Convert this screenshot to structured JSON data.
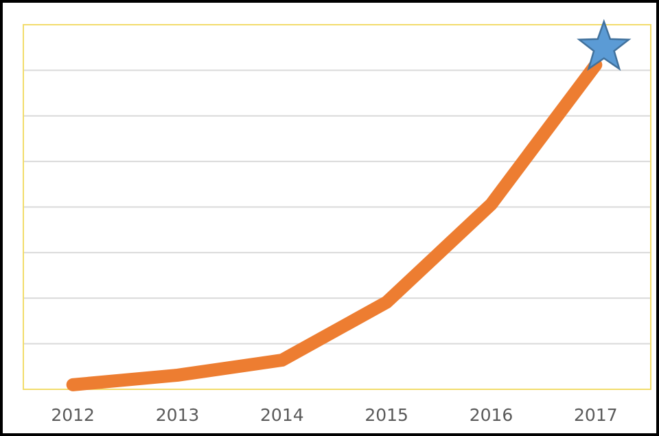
{
  "chart_data": {
    "type": "line",
    "title": "",
    "xlabel": "",
    "ylabel": "",
    "categories": [
      "2012",
      "2013",
      "2014",
      "2015",
      "2016",
      "2017"
    ],
    "series": [
      {
        "values": [
          1.0,
          3.1,
          6.4,
          19.1,
          40.6,
          71.2
        ],
        "color": "#ED7D31"
      }
    ],
    "ylim": [
      0,
      80
    ],
    "grid": true,
    "y_tick_labels_shown": false,
    "plot_border_color": "#F2DC6B",
    "gridline_color": "#D9D9D9",
    "marker": {
      "category": "2017",
      "shape": "star",
      "color": "#5B9BD5",
      "outline": "#41719C"
    }
  }
}
